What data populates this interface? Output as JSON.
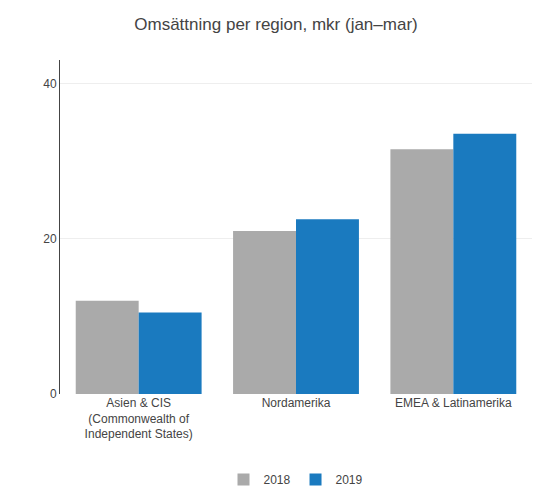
{
  "chart_data": {
    "type": "bar",
    "title": "Omsättning per region, mkr (jan–mar)",
    "categories": [
      "Asien & CIS\n(Commonwealth of\nIndependent States)",
      "Nordamerika",
      "EMEA & Latinamerika"
    ],
    "series": [
      {
        "name": "2018",
        "color": "#aaaaaa",
        "values": [
          12.0,
          21.0,
          31.5
        ]
      },
      {
        "name": "2019",
        "color": "#1a7abf",
        "values": [
          10.5,
          22.5,
          33.5
        ]
      }
    ],
    "ylim": [
      0,
      43
    ],
    "yticks": [
      0,
      20,
      40
    ],
    "grid": true,
    "legend": "bottom"
  }
}
